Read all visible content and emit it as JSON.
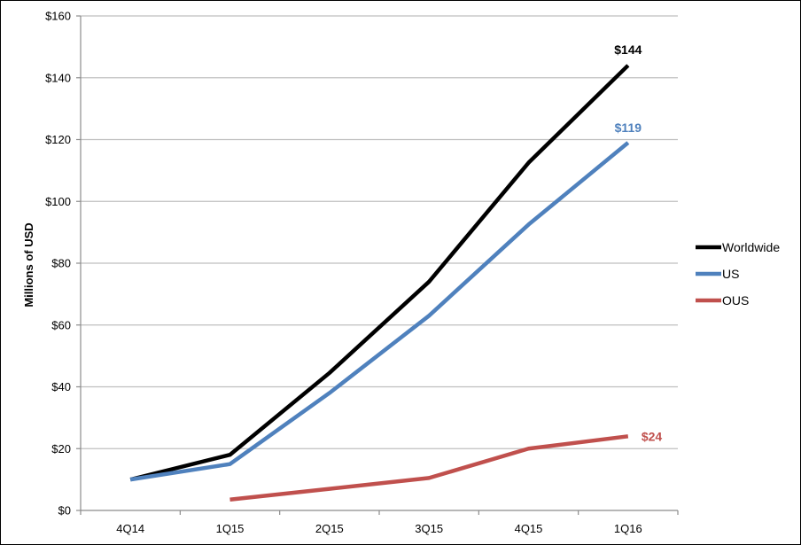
{
  "chart_data": {
    "type": "line",
    "title": "",
    "xlabel": "",
    "ylabel": "Millions of USD",
    "categories": [
      "4Q14",
      "1Q15",
      "2Q15",
      "3Q15",
      "4Q15",
      "1Q16"
    ],
    "ylim": [
      0,
      160
    ],
    "yticks": [
      "$0",
      "$20",
      "$40",
      "$60",
      "$80",
      "$100",
      "$120",
      "$140",
      "$160"
    ],
    "ytick_values": [
      0,
      20,
      40,
      60,
      80,
      100,
      120,
      140,
      160
    ],
    "grid": true,
    "legend_position": "right",
    "series": [
      {
        "name": "Worldwide",
        "color": "#000000",
        "values": [
          10,
          18,
          44.5,
          74,
          112.5,
          144
        ],
        "end_label": "$144"
      },
      {
        "name": "US",
        "color": "#4f81bd",
        "values": [
          10,
          15,
          38,
          63,
          92.5,
          119
        ],
        "end_label": "$119"
      },
      {
        "name": "OUS",
        "color": "#c0504d",
        "values": [
          null,
          3.5,
          7,
          10.5,
          20,
          24
        ],
        "end_label": "$24"
      }
    ]
  }
}
